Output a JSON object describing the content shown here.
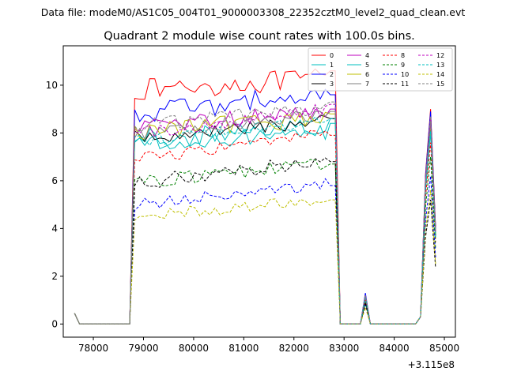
{
  "figure": {
    "suptitle": "Data file: modeM0/AS1C05_004T01_9000003308_22352cztM0_level2_quad_clean.evt",
    "title": "Quadrant 2 module wise count rates with 100.0s bins.",
    "x_offset_label": "+3.115e8"
  },
  "chart_data": {
    "type": "line",
    "title": "Quadrant 2 module wise count rates with 100.0s bins.",
    "xlabel": "",
    "ylabel": "",
    "x_offset": 311500000,
    "xlim": [
      77400,
      85220
    ],
    "ylim": [
      -0.55,
      11.65
    ],
    "xticks": [
      78000,
      79000,
      80000,
      81000,
      82000,
      83000,
      84000,
      85000
    ],
    "xtick_labels": [
      "78000",
      "79000",
      "80000",
      "81000",
      "82000",
      "83000",
      "84000",
      "85000"
    ],
    "yticks": [
      0,
      2,
      4,
      6,
      8,
      10
    ],
    "ytick_labels": [
      "0",
      "2",
      "4",
      "6",
      "8",
      "10"
    ],
    "legend": {
      "location": "upper-right",
      "columns": 4
    },
    "x_ranges": [
      {
        "start": 77625,
        "end": 78725,
        "step": 100
      },
      {
        "start": 78825,
        "end": 82825,
        "step": 100
      },
      {
        "start": 82925,
        "end": 84825,
        "step": 100
      }
    ],
    "series": [
      {
        "name": "0",
        "color": "#ff0000",
        "dash": "solid",
        "base": 9.8,
        "slope": 0.5,
        "noise": 0.45,
        "p_end": 10.6,
        "pk1": 1.2,
        "pk2": 9.0
      },
      {
        "name": "1",
        "color": "#00bfbf",
        "dash": "solid",
        "base": 7.7,
        "slope": 0.6,
        "noise": 0.45,
        "p_end": 8.6,
        "pk1": 1.1,
        "pk2": 8.3
      },
      {
        "name": "2",
        "color": "#0000ff",
        "dash": "solid",
        "base": 8.8,
        "slope": 0.9,
        "noise": 0.45,
        "p_end": 9.6,
        "pk1": 1.3,
        "pk2": 8.9
      },
      {
        "name": "3",
        "color": "#000000",
        "dash": "solid",
        "base": 7.8,
        "slope": 0.7,
        "noise": 0.3,
        "p_end": 8.6,
        "pk1": 1.1,
        "pk2": 8.2
      },
      {
        "name": "4",
        "color": "#bf00bf",
        "dash": "solid",
        "base": 8.3,
        "slope": 0.6,
        "noise": 0.35,
        "p_end": 9.0,
        "pk1": 1.2,
        "pk2": 8.6
      },
      {
        "name": "5",
        "color": "#00bfbf",
        "dash": "solid",
        "base": 7.6,
        "slope": 0.5,
        "noise": 0.4,
        "p_end": 8.4,
        "pk1": 1.1,
        "pk2": 8.0
      },
      {
        "name": "6",
        "color": "#bfbf00",
        "dash": "solid",
        "base": 8.0,
        "slope": 0.7,
        "noise": 0.4,
        "p_end": 8.8,
        "pk1": 1.2,
        "pk2": 8.4
      },
      {
        "name": "7",
        "color": "#808080",
        "dash": "solid",
        "base": 8.0,
        "slope": 0.8,
        "noise": 0.3,
        "p_end": 8.9,
        "pk1": 1.2,
        "pk2": 8.5
      },
      {
        "name": "8",
        "color": "#ff0000",
        "dash": "dashed",
        "base": 6.9,
        "slope": 1.1,
        "noise": 0.25,
        "p_end": 7.9,
        "pk1": 1.0,
        "pk2": 7.6
      },
      {
        "name": "9",
        "color": "#008000",
        "dash": "dashed",
        "base": 5.9,
        "slope": 0.9,
        "noise": 0.3,
        "p_end": 6.7,
        "pk1": 0.9,
        "pk2": 7.0
      },
      {
        "name": "10",
        "color": "#0000ff",
        "dash": "dashed",
        "base": 5.0,
        "slope": 0.9,
        "noise": 0.25,
        "p_end": 5.8,
        "pk1": 0.8,
        "pk2": 6.2
      },
      {
        "name": "11",
        "color": "#000000",
        "dash": "dashed",
        "base": 5.9,
        "slope": 1.0,
        "noise": 0.3,
        "p_end": 6.8,
        "pk1": 0.9,
        "pk2": 5.2
      },
      {
        "name": "12",
        "color": "#bf00bf",
        "dash": "dashed",
        "base": 8.0,
        "slope": 1.0,
        "noise": 0.3,
        "p_end": 9.2,
        "pk1": 1.2,
        "pk2": 8.6
      },
      {
        "name": "13",
        "color": "#00bfbf",
        "dash": "dashed",
        "base": 7.6,
        "slope": 0.9,
        "noise": 0.3,
        "p_end": 8.6,
        "pk1": 1.1,
        "pk2": 8.1
      },
      {
        "name": "14",
        "color": "#bfbf00",
        "dash": "dashed",
        "base": 4.5,
        "slope": 0.7,
        "noise": 0.25,
        "p_end": 5.2,
        "pk1": 0.7,
        "pk2": 5.6
      },
      {
        "name": "15",
        "color": "#808080",
        "dash": "dashed",
        "base": 8.3,
        "slope": 0.8,
        "noise": 0.3,
        "p_end": 9.3,
        "pk1": 1.2,
        "pk2": 8.7
      }
    ]
  }
}
